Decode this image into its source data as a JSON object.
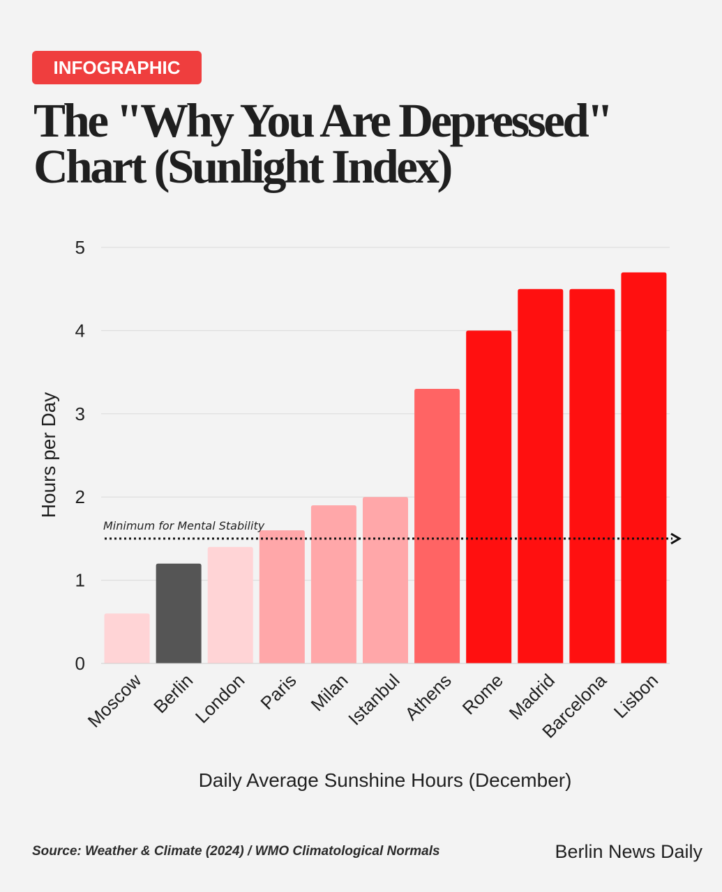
{
  "badge": {
    "label": "INFOGRAPHIC"
  },
  "title": "The \"Why You Are Depressed\" Chart (Sunlight Index)",
  "footer": {
    "source": "Source: Weather & Climate (2024) / WMO Climatological Normals",
    "brand": "Berlin News Daily"
  },
  "colors": {
    "background": "#f3f3f3",
    "badge": "#ef3e3e",
    "highlight": "#555555",
    "red_full": "#ff1010",
    "red_mid": "#ff6464",
    "pink_mid": "#ffa7a9",
    "pink_light": "#ffd4d6"
  },
  "chart_data": {
    "type": "bar",
    "categories": [
      "Moscow",
      "Berlin",
      "London",
      "Paris",
      "Milan",
      "Istanbul",
      "Athens",
      "Rome",
      "Madrid",
      "Barcelona",
      "Lisbon"
    ],
    "values": [
      0.6,
      1.2,
      1.4,
      1.6,
      1.9,
      2.0,
      3.3,
      4.0,
      4.5,
      4.5,
      4.7
    ],
    "bar_colors": [
      "#ffd4d6",
      "#555555",
      "#ffd4d6",
      "#ffa7a9",
      "#ffa7a9",
      "#ffa7a9",
      "#ff6464",
      "#ff1010",
      "#ff1010",
      "#ff1010",
      "#ff1010"
    ],
    "xlabel": "Daily Average Sunshine Hours (December)",
    "ylabel": "Hours per Day",
    "ylim": [
      0,
      5
    ],
    "yticks": [
      0,
      1,
      2,
      3,
      4,
      5
    ],
    "grid": true,
    "reference_line": {
      "value": 1.5,
      "label": "Minimum for Mental Stability",
      "style": "dotted-arrow"
    }
  }
}
